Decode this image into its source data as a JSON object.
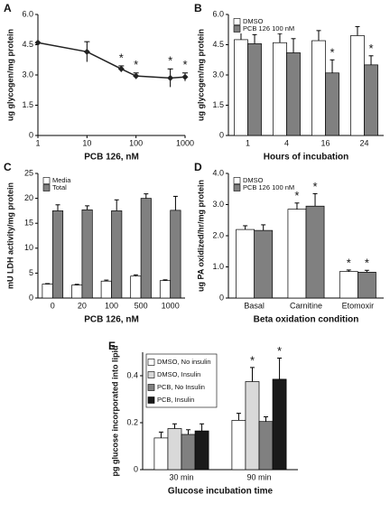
{
  "chart_data": [
    {
      "type": "line",
      "panel": "A",
      "xlog": true,
      "ylabel": "ug glycogen/mg protein",
      "xlabel": "PCB 126, nM",
      "x": [
        1,
        10,
        50,
        100,
        500,
        1000
      ],
      "xlim": [
        1,
        1000
      ],
      "xticks": [
        1,
        10,
        100,
        1000
      ],
      "ylim": [
        0,
        6
      ],
      "yticks": [
        0,
        1.5,
        {
          "value": 3,
          "label": "3.0"
        },
        4.5,
        {
          "value": 6,
          "label": "6.0"
        }
      ],
      "series": [
        {
          "color": "#222222",
          "values": [
            4.6,
            4.15,
            3.3,
            2.95,
            2.85,
            2.9
          ],
          "errors": [
            0,
            0.5,
            0.15,
            0.15,
            0.45,
            0.2
          ],
          "stars": [
            null,
            null,
            "*",
            "*",
            "*",
            "*"
          ]
        }
      ]
    },
    {
      "type": "bar",
      "panel": "B",
      "ylabel": "ug glycogen/mg protein",
      "xlabel": "Hours of incubation",
      "legend": "upper left",
      "categories": [
        "1",
        "4",
        "16",
        "24"
      ],
      "ylim": [
        0,
        6
      ],
      "yticks": [
        0,
        1.5,
        {
          "value": 3,
          "label": "3.0"
        },
        4.5,
        {
          "value": 6,
          "label": "6.0"
        }
      ],
      "series": [
        {
          "name": "DMSO",
          "color": "#ffffff",
          "values": [
            4.75,
            4.6,
            4.7,
            4.95
          ],
          "errors": [
            0.4,
            0.45,
            0.5,
            0.45
          ],
          "stars": [
            null,
            null,
            null,
            null
          ]
        },
        {
          "name": "PCB 126 100 nM",
          "color": "#808080",
          "values": [
            4.55,
            4.1,
            3.1,
            3.5
          ],
          "errors": [
            0.45,
            0.7,
            0.65,
            0.45
          ],
          "stars": [
            null,
            null,
            "*",
            "*"
          ]
        }
      ]
    },
    {
      "type": "bar",
      "panel": "C",
      "ylabel": "mU LDH activity/mg protein",
      "xlabel": "PCB 126, nM",
      "legend": "upper left",
      "categories": [
        "0",
        "20",
        "100",
        "500",
        "1000"
      ],
      "ylim": [
        0,
        25
      ],
      "yticks": [
        0,
        5,
        10,
        15,
        20,
        25
      ],
      "series": [
        {
          "name": "Media",
          "color": "#ffffff",
          "values": [
            2.8,
            2.6,
            3.4,
            4.4,
            3.5
          ],
          "errors": [
            0.1,
            0.15,
            0.2,
            0.25,
            0.15
          ],
          "stars": [
            null,
            null,
            null,
            null,
            null
          ]
        },
        {
          "name": "Total",
          "color": "#808080",
          "values": [
            17.5,
            17.7,
            17.5,
            20,
            17.6
          ],
          "errors": [
            1.2,
            0.8,
            2.2,
            0.9,
            2.8
          ],
          "stars": [
            null,
            null,
            null,
            null,
            null
          ]
        }
      ]
    },
    {
      "type": "bar",
      "panel": "D",
      "ylabel": "ug PA oxidized/hr/mg protein",
      "xlabel": "Beta oxidation condition",
      "legend": "upper left",
      "categories": [
        "Basal",
        "Carnitine",
        "Etomoxir"
      ],
      "ylim": [
        0,
        4
      ],
      "yticks": [
        0,
        {
          "value": 1,
          "label": "1.0"
        },
        {
          "value": 2,
          "label": "2.0"
        },
        {
          "value": 3,
          "label": "3.0"
        },
        {
          "value": 4,
          "label": "4.0"
        }
      ],
      "series": [
        {
          "name": "DMSO",
          "color": "#ffffff",
          "values": [
            2.2,
            2.85,
            0.85
          ],
          "errors": [
            0.12,
            0.2,
            0.05
          ],
          "stars": [
            null,
            "*",
            "*"
          ]
        },
        {
          "name": "PCB 126 100 nM",
          "color": "#808080",
          "values": [
            2.17,
            2.95,
            0.83
          ],
          "errors": [
            0.18,
            0.4,
            0.06
          ],
          "stars": [
            null,
            "*",
            "*"
          ]
        }
      ]
    },
    {
      "type": "bar",
      "panel": "E",
      "ylabel": "pg glucose incorporated into lipid",
      "xlabel": "Glucose incubation time",
      "legend": "upper left",
      "categories": [
        "30 min",
        "90 min"
      ],
      "ylim": [
        0,
        0.5
      ],
      "yticks": [
        0,
        0.2,
        0.4
      ],
      "series": [
        {
          "name": "DMSO, No insulin",
          "color": "#ffffff",
          "values": [
            0.135,
            0.21
          ],
          "errors": [
            0.025,
            0.03
          ],
          "stars": [
            null,
            null
          ]
        },
        {
          "name": "DMSO, Insulin",
          "color": "#d9d9d9",
          "values": [
            0.175,
            0.375
          ],
          "errors": [
            0.02,
            0.06
          ],
          "stars": [
            null,
            "*"
          ]
        },
        {
          "name": "PCB, No Insulin",
          "color": "#808080",
          "values": [
            0.15,
            0.205
          ],
          "errors": [
            0.02,
            0.02
          ],
          "stars": [
            null,
            null
          ]
        },
        {
          "name": "PCB, Insulin",
          "color": "#1a1a1a",
          "values": [
            0.165,
            0.385
          ],
          "errors": [
            0.03,
            0.09
          ],
          "stars": [
            null,
            "*"
          ]
        }
      ]
    }
  ]
}
